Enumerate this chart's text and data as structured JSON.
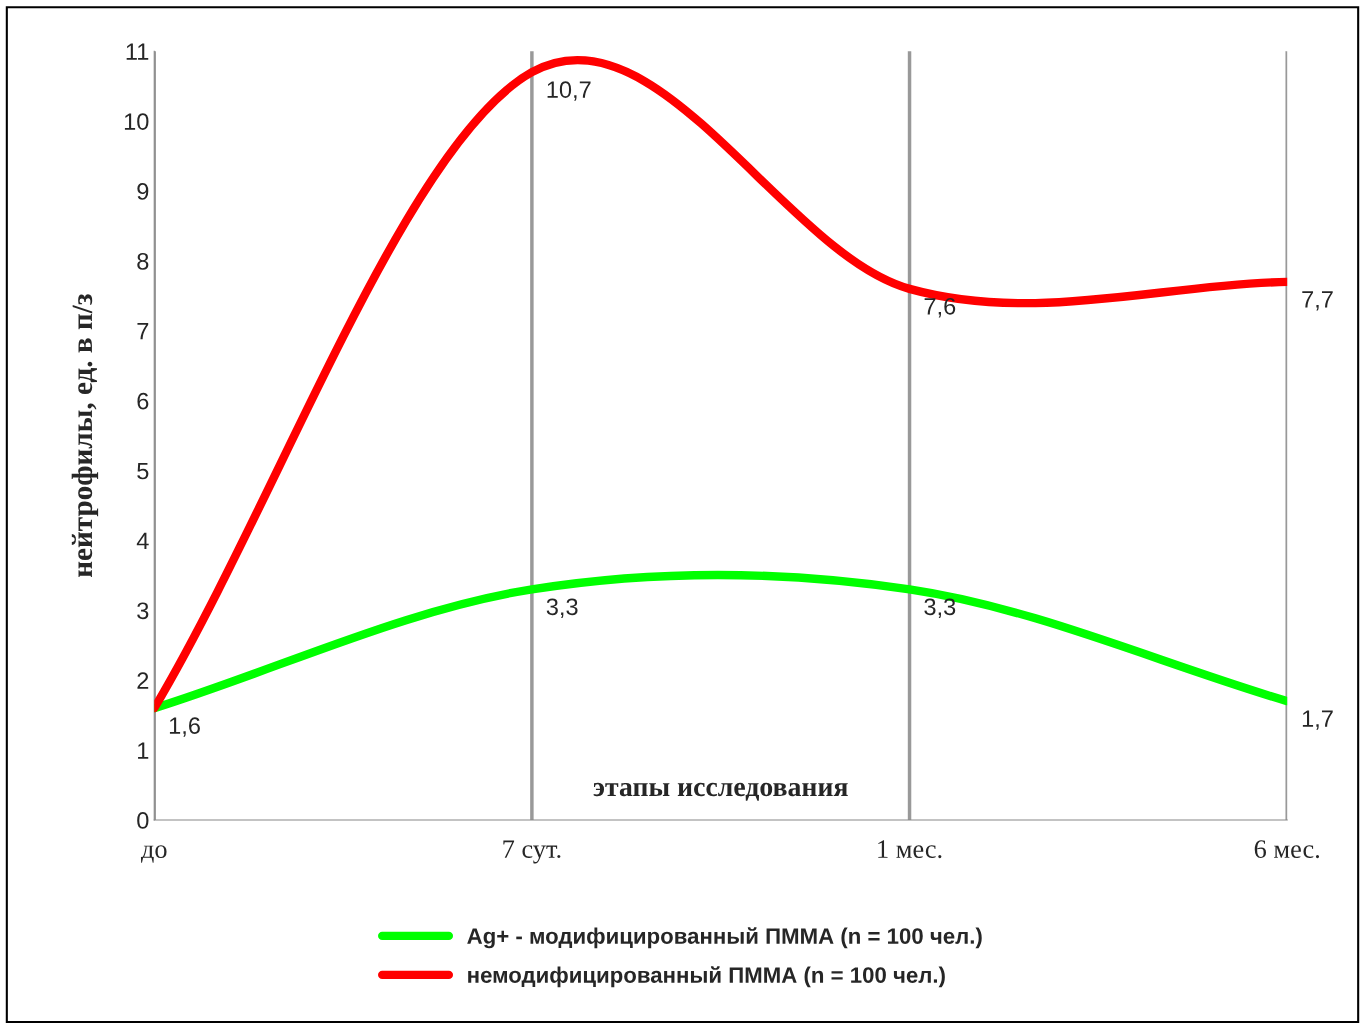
{
  "chart_data": {
    "type": "line",
    "xlabel": "этапы исследования",
    "ylabel": "нейтрофилы, ед. в п/з",
    "categories": [
      "до",
      "7 сут.",
      "1 мес.",
      "6 мес."
    ],
    "series": [
      {
        "name": "Ag+ - модифицированный ПММА (n = 100 чел.)",
        "color": "#00ff00",
        "values": [
          1.6,
          3.3,
          3.3,
          1.7
        ],
        "value_labels": [
          "1,6",
          "3,3",
          "3,3",
          "1,7"
        ]
      },
      {
        "name": "немодифицированный ПММА (n = 100 чел.)",
        "color": "#ff0000",
        "values": [
          1.6,
          10.7,
          7.6,
          7.7
        ],
        "value_labels": [
          null,
          "10,7",
          "7,6",
          "7,7"
        ]
      }
    ],
    "ylim": [
      0,
      11
    ],
    "yticks": [
      0,
      1,
      2,
      3,
      4,
      5,
      6,
      7,
      8,
      9,
      10,
      11
    ],
    "grid": "x",
    "legend": "bottom",
    "marker": "none",
    "line_style": "solid"
  }
}
